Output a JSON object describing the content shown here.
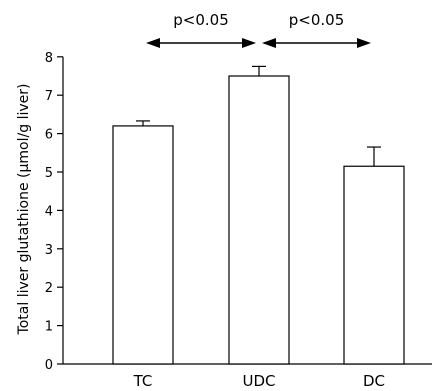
{
  "chart_data": {
    "type": "bar",
    "categories": [
      "TC",
      "UDC",
      "DC"
    ],
    "values": [
      6.2,
      7.5,
      5.15
    ],
    "errors": [
      0.13,
      0.25,
      0.5
    ],
    "ylabel": "Total liver glutathione (µmol/g liver)",
    "xlabel": "",
    "ylim": [
      0,
      8
    ],
    "yticks": [
      0,
      1,
      2,
      3,
      4,
      5,
      6,
      7,
      8
    ],
    "grid": false,
    "bar_fill": "#ffffff",
    "bar_stroke": "#000000",
    "annotations": [
      {
        "label": "p<0.05",
        "from": "TC",
        "to": "UDC"
      },
      {
        "label": "p<0.05",
        "from": "UDC",
        "to": "DC"
      }
    ]
  }
}
